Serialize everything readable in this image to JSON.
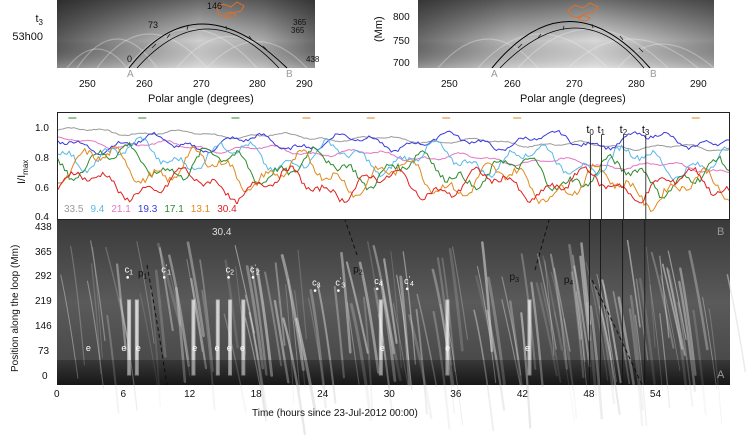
{
  "top_left": {
    "label_line1": "t",
    "label_sub": "3",
    "label_line2": "53h00",
    "contour_labels": [
      "146",
      "73",
      "0",
      "365",
      "365",
      "438"
    ],
    "marker_A": "A",
    "marker_B": "B",
    "xticks": [
      "250",
      "260",
      "270",
      "280",
      "290"
    ],
    "xlabel": "Polar angle (degrees)"
  },
  "top_right": {
    "ylabel": "(Mm)",
    "yticks": [
      "800",
      "750",
      "700"
    ],
    "marker_A": "A",
    "marker_B": "B",
    "xticks": [
      "250",
      "260",
      "270",
      "280",
      "290"
    ],
    "xlabel": "Polar angle (degrees)"
  },
  "lightcurves": {
    "ylabel": "I/I",
    "ylabel_sub": "max",
    "yticks": [
      "1.0",
      "0.8",
      "0.6",
      "0.4"
    ],
    "time_markers": [
      {
        "label": "t",
        "sub": "0",
        "t": 48.0
      },
      {
        "label": "t",
        "sub": "1",
        "t": 49.0
      },
      {
        "label": "t",
        "sub": "2",
        "t": 51.0
      },
      {
        "label": "t",
        "sub": "3",
        "t": 53.0
      }
    ],
    "legend": [
      {
        "label": "33.5",
        "color": "#9a9a9a"
      },
      {
        "label": "9.4",
        "color": "#5bb8e8"
      },
      {
        "label": "21.1",
        "color": "#e377c2"
      },
      {
        "label": "19.3",
        "color": "#3a3ae0"
      },
      {
        "label": "17.1",
        "color": "#2e8b2e"
      },
      {
        "label": "13.1",
        "color": "#e08a1e"
      },
      {
        "label": "30.4",
        "color": "#e02020"
      }
    ]
  },
  "timeslice": {
    "channel": "30.4",
    "corner_A": "A",
    "corner_B": "B",
    "ylabel": "Position along the loop (Mm)",
    "yticks": [
      "438",
      "365",
      "292",
      "219",
      "146",
      "73",
      "0"
    ],
    "xlabel": "Time (hours since 23-Jul-2012 00:00)",
    "xticks": [
      "0",
      "6",
      "12",
      "18",
      "24",
      "30",
      "36",
      "42",
      "48",
      "54"
    ],
    "annotations": [
      {
        "text": "c",
        "sub": "1",
        "t": 6.1,
        "pos": 292
      },
      {
        "text": "p",
        "sub": "1",
        "t": 7.3,
        "pos": 280
      },
      {
        "text": "c",
        "sub": "1",
        "sup": "'",
        "t": 9.4,
        "pos": 292
      },
      {
        "text": "c",
        "sub": "2",
        "t": 15.2,
        "pos": 292
      },
      {
        "text": "c",
        "sub": "2",
        "sup": "'",
        "t": 17.4,
        "pos": 292
      },
      {
        "text": "c",
        "sub": "3",
        "t": 23.0,
        "pos": 255
      },
      {
        "text": "c",
        "sub": "3",
        "sup": "'",
        "t": 25.1,
        "pos": 255
      },
      {
        "text": "p",
        "sub": "2",
        "t": 26.7,
        "pos": 292
      },
      {
        "text": "c",
        "sub": "4",
        "t": 28.6,
        "pos": 260
      },
      {
        "text": "c",
        "sub": "4",
        "sup": "'",
        "t": 31.3,
        "pos": 260
      },
      {
        "text": "p",
        "sub": "3",
        "t": 40.8,
        "pos": 270
      },
      {
        "text": "p",
        "sub": "4",
        "t": 45.7,
        "pos": 262
      },
      {
        "text": "e",
        "t": 2.6,
        "pos": 73
      },
      {
        "text": "e",
        "t": 5.8,
        "pos": 73
      },
      {
        "text": "e",
        "t": 7.1,
        "pos": 73
      },
      {
        "text": "e",
        "t": 12.2,
        "pos": 73
      },
      {
        "text": "e",
        "t": 14.2,
        "pos": 73
      },
      {
        "text": "e",
        "t": 15.3,
        "pos": 73
      },
      {
        "text": "e",
        "t": 16.5,
        "pos": 73
      },
      {
        "text": "e",
        "t": 29.1,
        "pos": 73
      },
      {
        "text": "e",
        "t": 35.0,
        "pos": 73
      },
      {
        "text": "e",
        "t": 42.2,
        "pos": 73
      }
    ]
  }
}
